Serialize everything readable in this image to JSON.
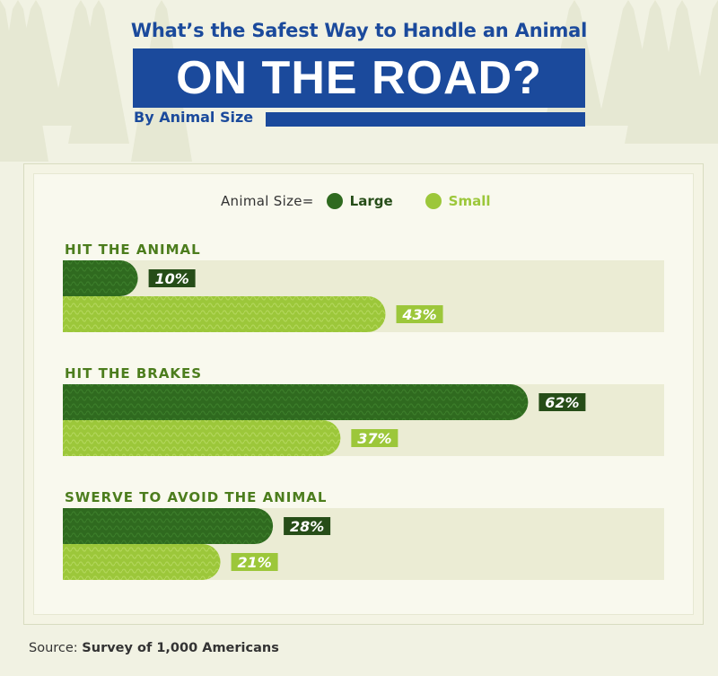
{
  "header": {
    "question": "What’s the Safest Way to Handle an Animal",
    "title": "ON THE ROAD?",
    "subtitle": "By Animal Size"
  },
  "legend": {
    "title": "Animal Size=",
    "items": [
      {
        "label": "Large",
        "color": "#2f6a1f"
      },
      {
        "label": "Small",
        "color": "#9cc73a"
      }
    ]
  },
  "source": {
    "prefix": "Source:",
    "text": "Survey of 1,000 Americans"
  },
  "colors": {
    "title_blue": "#1b4a9c",
    "large": "#2f6a1f",
    "small": "#9cc73a",
    "track": "#ebecd4",
    "category_text": "#4c7d1d"
  },
  "chart_data": {
    "type": "bar",
    "orientation": "horizontal",
    "categories": [
      "HIT THE ANIMAL",
      "HIT THE BRAKES",
      "SWERVE TO AVOID THE ANIMAL"
    ],
    "series": [
      {
        "name": "Large",
        "values": [
          10,
          62,
          28
        ]
      },
      {
        "name": "Small",
        "values": [
          43,
          37,
          21
        ]
      }
    ],
    "value_labels": [
      [
        "10%",
        "43%"
      ],
      [
        "62%",
        "37%"
      ],
      [
        "28%",
        "21%"
      ]
    ],
    "xlim": [
      0,
      100
    ],
    "grid": false,
    "legend_position": "top-center"
  }
}
